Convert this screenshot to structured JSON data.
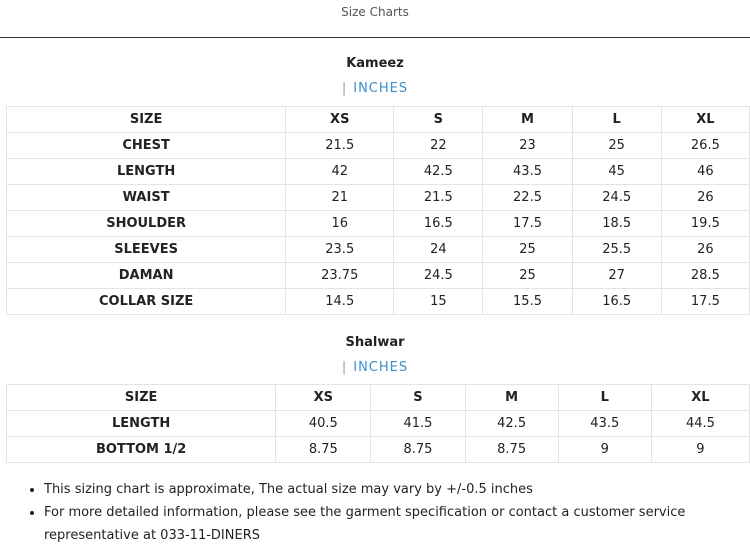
{
  "header": {
    "title": "Size Charts"
  },
  "sections": [
    {
      "title": "Kameez",
      "unit": "INCHES",
      "columns": [
        "SIZE",
        "XS",
        "S",
        "M",
        "L",
        "XL"
      ],
      "rows": [
        [
          "CHEST",
          21.5,
          22,
          23,
          25,
          26.5
        ],
        [
          "LENGTH",
          42,
          42.5,
          43.5,
          45,
          46
        ],
        [
          "WAIST",
          21,
          21.5,
          22.5,
          24.5,
          26
        ],
        [
          "SHOULDER",
          16,
          16.5,
          17.5,
          18.5,
          19.5
        ],
        [
          "SLEEVES",
          23.5,
          24,
          25,
          25.5,
          26
        ],
        [
          "DAMAN",
          23.75,
          24.5,
          25,
          27,
          28.5
        ],
        [
          "COLLAR SIZE",
          14.5,
          15,
          15.5,
          16.5,
          17.5
        ]
      ]
    },
    {
      "title": "Shalwar",
      "unit": "INCHES",
      "columns": [
        "SIZE",
        "XS",
        "S",
        "M",
        "L",
        "XL"
      ],
      "rows": [
        [
          "LENGTH",
          40.5,
          41.5,
          42.5,
          43.5,
          44.5
        ],
        [
          "BOTTOM 1/2",
          8.75,
          8.75,
          8.75,
          9,
          9
        ]
      ]
    }
  ],
  "notes": [
    "This sizing chart is approximate, The actual size may vary by +/-0.5 inches",
    "For more detailed information, please see the garment specification or contact a customer service representative at 033-11-DINERS"
  ]
}
